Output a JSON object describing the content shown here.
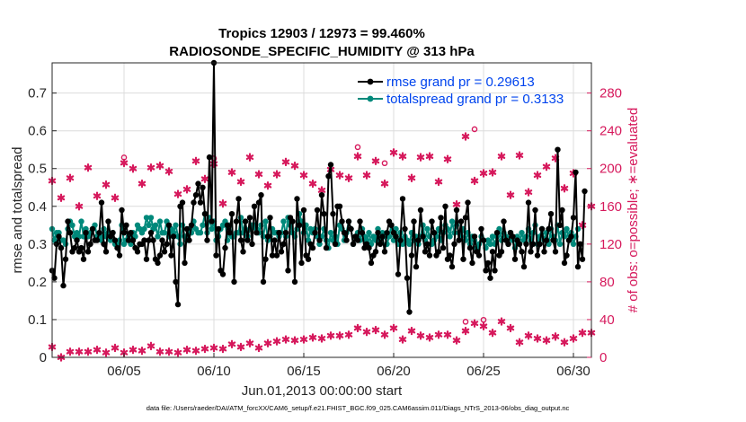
{
  "chart_data": {
    "type": "line",
    "title_line1": "Tropics 12903 / 12973 = 99.460%",
    "title_line2": "RADIOSONDE_SPECIFIC_HUMIDITY @ 313 hPa",
    "ylabel": "rmse and totalspread",
    "y2label": "# of obs: o=possible; ∗=evaluated",
    "xlabel": "Jun.01,2013 00:00:00 start",
    "xlim": [
      1,
      31
    ],
    "ylim": [
      0,
      0.78
    ],
    "y2lim": [
      0,
      312
    ],
    "x_ticks": [
      5,
      10,
      15,
      20,
      25,
      30
    ],
    "x_tick_labels": [
      "06/05",
      "06/10",
      "06/15",
      "06/20",
      "06/25",
      "06/30"
    ],
    "y_ticks": [
      0,
      0.1,
      0.2,
      0.3,
      0.4,
      0.5,
      0.6,
      0.7
    ],
    "y_tick_labels": [
      "0",
      "0.1",
      "0.2",
      "0.3",
      "0.4",
      "0.5",
      "0.6",
      "0.7"
    ],
    "y2_ticks": [
      0,
      40,
      80,
      120,
      160,
      200,
      240,
      280
    ],
    "y2_tick_labels": [
      "0",
      "40",
      "80",
      "120",
      "160",
      "200",
      "240",
      "280"
    ],
    "colors": {
      "rmse": "#000000",
      "spread": "#00897b",
      "obs": "#d6195c",
      "legend_text": "#0044ee"
    },
    "series": [
      {
        "name": "rmse grand pr = 0.29613",
        "color": "#000000",
        "values": [
          0.23,
          0.21,
          0.3,
          0.32,
          0.29,
          0.19,
          0.26,
          0.36,
          0.33,
          0.28,
          0.29,
          0.31,
          0.28,
          0.29,
          0.26,
          0.33,
          0.28,
          0.3,
          0.34,
          0.31,
          0.31,
          0.33,
          0.41,
          0.3,
          0.28,
          0.36,
          0.32,
          0.33,
          0.31,
          0.29,
          0.27,
          0.39,
          0.33,
          0.35,
          0.31,
          0.33,
          0.31,
          0.29,
          0.28,
          0.3,
          0.3,
          0.31,
          0.26,
          0.31,
          0.33,
          0.31,
          0.26,
          0.25,
          0.27,
          0.31,
          0.28,
          0.3,
          0.35,
          0.27,
          0.32,
          0.2,
          0.14,
          0.4,
          0.41,
          0.25,
          0.34,
          0.31,
          0.35,
          0.41,
          0.43,
          0.46,
          0.41,
          0.45,
          0.38,
          0.31,
          0.53,
          0.36,
          0.78,
          0.27,
          0.34,
          0.23,
          0.22,
          0.29,
          0.35,
          0.33,
          0.38,
          0.2,
          0.36,
          0.42,
          0.31,
          0.28,
          0.36,
          0.31,
          0.37,
          0.3,
          0.4,
          0.33,
          0.41,
          0.43,
          0.2,
          0.26,
          0.32,
          0.37,
          0.27,
          0.31,
          0.27,
          0.33,
          0.28,
          0.3,
          0.33,
          0.23,
          0.37,
          0.36,
          0.2,
          0.42,
          0.35,
          0.25,
          0.39,
          0.27,
          0.26,
          0.3,
          0.29,
          0.33,
          0.39,
          0.31,
          0.43,
          0.38,
          0.29,
          0.48,
          0.51,
          0.38,
          0.3,
          0.4,
          0.4,
          0.36,
          0.33,
          0.31,
          0.36,
          0.34,
          0.3,
          0.32,
          0.31,
          0.36,
          0.33,
          0.29,
          0.3,
          0.29,
          0.25,
          0.27,
          0.28,
          0.33,
          0.3,
          0.32,
          0.28,
          0.33,
          0.36,
          0.35,
          0.33,
          0.32,
          0.22,
          0.31,
          0.42,
          0.34,
          0.21,
          0.12,
          0.27,
          0.36,
          0.24,
          0.31,
          0.39,
          0.32,
          0.28,
          0.3,
          0.27,
          0.36,
          0.33,
          0.27,
          0.28,
          0.37,
          0.29,
          0.4,
          0.26,
          0.27,
          0.24,
          0.3,
          0.39,
          0.31,
          0.36,
          0.26,
          0.37,
          0.41,
          0.29,
          0.25,
          0.32,
          0.28,
          0.27,
          0.34,
          0.31,
          0.23,
          0.25,
          0.21,
          0.28,
          0.23,
          0.33,
          0.27,
          0.28,
          0.36,
          0.31,
          0.3,
          0.33,
          0.32,
          0.26,
          0.31,
          0.3,
          0.28,
          0.24,
          0.3,
          0.41,
          0.28,
          0.3,
          0.39,
          0.27,
          0.3,
          0.34,
          0.28,
          0.31,
          0.34,
          0.38,
          0.31,
          0.28,
          0.55,
          0.35,
          0.39,
          0.25,
          0.27,
          0.31,
          0.32,
          0.37,
          0.49,
          0.24,
          0.3,
          0.26,
          0.44
        ],
        "x_start": 1.0,
        "x_step": 0.125
      },
      {
        "name": "totalspread grand pr = 0.3133",
        "color": "#00897b",
        "values": [
          0.34,
          0.31,
          0.33,
          0.33,
          0.31,
          0.31,
          0.3,
          0.34,
          0.36,
          0.35,
          0.32,
          0.33,
          0.32,
          0.36,
          0.32,
          0.34,
          0.32,
          0.33,
          0.34,
          0.35,
          0.32,
          0.32,
          0.31,
          0.34,
          0.32,
          0.33,
          0.31,
          0.33,
          0.3,
          0.3,
          0.31,
          0.35,
          0.3,
          0.31,
          0.32,
          0.3,
          0.33,
          0.32,
          0.35,
          0.34,
          0.33,
          0.34,
          0.37,
          0.35,
          0.37,
          0.34,
          0.35,
          0.32,
          0.36,
          0.33,
          0.33,
          0.36,
          0.32,
          0.34,
          0.33,
          0.35,
          0.32,
          0.3,
          0.35,
          0.32,
          0.31,
          0.34,
          0.33,
          0.36,
          0.34,
          0.33,
          0.33,
          0.35,
          0.38,
          0.33,
          0.37,
          0.34,
          0.36,
          0.31,
          0.32,
          0.34,
          0.35,
          0.36,
          0.31,
          0.35,
          0.32,
          0.32,
          0.33,
          0.33,
          0.37,
          0.33,
          0.36,
          0.32,
          0.34,
          0.35,
          0.35,
          0.34,
          0.33,
          0.35,
          0.32,
          0.36,
          0.31,
          0.32,
          0.34,
          0.33,
          0.33,
          0.32,
          0.33,
          0.36,
          0.32,
          0.37,
          0.35,
          0.33,
          0.32,
          0.34,
          0.38,
          0.36,
          0.33,
          0.35,
          0.31,
          0.34,
          0.33,
          0.34,
          0.32,
          0.3,
          0.32,
          0.34,
          0.31,
          0.29,
          0.33,
          0.31,
          0.32,
          0.3,
          0.35,
          0.34,
          0.31,
          0.33,
          0.36,
          0.34,
          0.3,
          0.32,
          0.33,
          0.31,
          0.34,
          0.32,
          0.31,
          0.33,
          0.3,
          0.32,
          0.31,
          0.34,
          0.31,
          0.33,
          0.32,
          0.3,
          0.32,
          0.35,
          0.31,
          0.34,
          0.3,
          0.33,
          0.3,
          0.32,
          0.31,
          0.3,
          0.33,
          0.31,
          0.32,
          0.3,
          0.32,
          0.35,
          0.31,
          0.34,
          0.32,
          0.3,
          0.31,
          0.32,
          0.34,
          0.31,
          0.33,
          0.35,
          0.34,
          0.32,
          0.36,
          0.33,
          0.35,
          0.33,
          0.32,
          0.34,
          0.31,
          0.33,
          0.3,
          0.32,
          0.31,
          0.29,
          0.3,
          0.32,
          0.31,
          0.29,
          0.31,
          0.3,
          0.32,
          0.3,
          0.32,
          0.34,
          0.31,
          0.33,
          0.32,
          0.3,
          0.33,
          0.31,
          0.29,
          0.32,
          0.3,
          0.33,
          0.31,
          0.32,
          0.34,
          0.31,
          0.33,
          0.35,
          0.3,
          0.32,
          0.34,
          0.31,
          0.33,
          0.3,
          0.34,
          0.32,
          0.31,
          0.35,
          0.3,
          0.33,
          0.32,
          0.34,
          0.31,
          0.33,
          0.3,
          0.32,
          0.34
        ],
        "x_start": 1.0,
        "x_step": 0.125
      },
      {
        "name": "# evaluated obs",
        "axis": "right",
        "color": "#d6195c",
        "markers": "star",
        "x": [
          1.0,
          1.5,
          2.0,
          2.5,
          3.0,
          3.5,
          4.0,
          4.5,
          5.0,
          5.5,
          6.0,
          6.5,
          7.0,
          7.5,
          8.0,
          8.5,
          9.0,
          9.5,
          10.0,
          10.5,
          11.0,
          11.5,
          12.0,
          12.5,
          13.0,
          13.5,
          14.0,
          14.5,
          15.0,
          15.5,
          16.0,
          16.5,
          17.0,
          17.5,
          18.0,
          18.5,
          19.0,
          19.5,
          20.0,
          20.5,
          21.0,
          21.5,
          22.0,
          22.5,
          23.0,
          23.5,
          24.0,
          24.5,
          25.0,
          25.5,
          26.0,
          26.5,
          27.0,
          27.5,
          28.0,
          28.5,
          29.0,
          29.5,
          30.0,
          30.5,
          31.0
        ],
        "values": [
          187,
          169,
          190,
          160,
          201,
          171,
          183,
          169,
          206,
          200,
          184,
          201,
          203,
          197,
          173,
          178,
          208,
          189,
          205,
          163,
          196,
          186,
          212,
          194,
          182,
          194,
          207,
          203,
          193,
          184,
          177,
          199,
          193,
          190,
          213,
          193,
          208,
          184,
          217,
          213,
          190,
          212,
          213,
          186,
          210,
          162,
          234,
          187,
          195,
          196,
          213,
          172,
          214,
          175,
          193,
          202,
          211,
          179,
          195,
          140,
          160
        ],
        "values_low": [
          11,
          0,
          6,
          6,
          6,
          8,
          5,
          10,
          5,
          8,
          7,
          12,
          6,
          6,
          5,
          8,
          7,
          9,
          10,
          9,
          14,
          11,
          15,
          10,
          15,
          17,
          19,
          18,
          19,
          21,
          20,
          23,
          23,
          24,
          31,
          27,
          29,
          24,
          31,
          19,
          28,
          23,
          21,
          24,
          24,
          18,
          28,
          36,
          33,
          26,
          38,
          31,
          16,
          23,
          20,
          18,
          22,
          16,
          20,
          26,
          26
        ]
      },
      {
        "name": "# possible obs",
        "axis": "right",
        "color": "#d6195c",
        "markers": "circle",
        "x": [
          5.0,
          10.0,
          18.0,
          19.5,
          24.5,
          24.0,
          25.0
        ],
        "values": [
          206,
          205,
          217,
          200,
          236,
          32,
          34
        ]
      }
    ],
    "legend": [
      {
        "label": "rmse grand pr = 0.29613",
        "color": "#000000"
      },
      {
        "label": "totalspread grand pr = 0.3133",
        "color": "#00897b"
      }
    ],
    "legend_position": "top-right",
    "grid": true
  },
  "footer": "data file: /Users/raeder/DAI/ATM_forcXX/CAM6_setup/f.e21.FHIST_BGC.f09_025.CAM6assim.011/Diags_NTrS_2013-06/obs_diag_output.nc"
}
